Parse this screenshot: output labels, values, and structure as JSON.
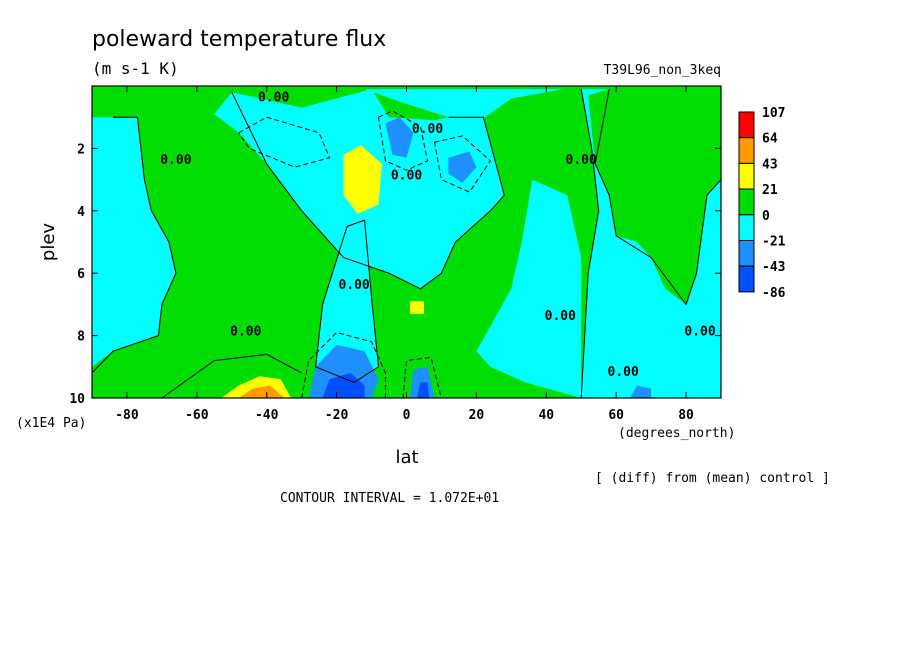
{
  "chart_data": {
    "type": "heatmap",
    "title": "poleward temperature flux",
    "subtitle": "(m s-1 K)",
    "run_label": "T39L96_non_3keq",
    "xlabel": "lat",
    "ylabel": "plev",
    "x_units": "(degrees_north)",
    "y_units": "(x1E4 Pa)",
    "xlim": [
      -90,
      90
    ],
    "ylim": [
      10,
      0
    ],
    "x_ticks": [
      "-80",
      "-60",
      "-40",
      "-20",
      "0",
      "20",
      "40",
      "60",
      "80"
    ],
    "x_tick_values": [
      -80,
      -60,
      -40,
      -20,
      0,
      20,
      40,
      60,
      80
    ],
    "y_ticks": [
      "2",
      "4",
      "6",
      "8",
      "10"
    ],
    "y_tick_values": [
      2,
      4,
      6,
      8,
      10
    ],
    "note": "[ (diff) from (mean) control ]",
    "contour_interval": "CONTOUR INTERVAL = 1.072E+01",
    "contour_label": "0.00",
    "colorbar": {
      "labels": [
        "107",
        "64",
        "43",
        "21",
        "0",
        "-21",
        "-43",
        "-86"
      ],
      "colors": [
        "#ff0000",
        "#ff9900",
        "#ffff00",
        "#00dd00",
        "#00ffff",
        "#1e90ff",
        "#0050ff"
      ]
    },
    "regions": [
      {
        "level": "positive",
        "color": "#00dd00",
        "points": [
          [
            -90,
            0.1
          ],
          [
            -30,
            0.1
          ],
          [
            -30,
            10
          ],
          [
            -90,
            10
          ]
        ]
      },
      {
        "level": "negative",
        "color": "#00ffff",
        "points": [
          [
            -84,
            1
          ],
          [
            -77,
            1
          ],
          [
            -75,
            3
          ],
          [
            -73,
            4
          ],
          [
            -68,
            5
          ],
          [
            -66,
            6
          ],
          [
            -70,
            7
          ],
          [
            -71,
            8
          ],
          [
            -84,
            8.5
          ],
          [
            -90,
            9
          ],
          [
            -90,
            1
          ]
        ]
      },
      {
        "level": "positive",
        "color": "#00dd00",
        "points": [
          [
            -30,
            0.1
          ],
          [
            -10,
            0.1
          ],
          [
            0,
            0.5
          ],
          [
            30,
            0.1
          ],
          [
            50,
            0.1
          ],
          [
            48,
            8
          ],
          [
            42,
            9.5
          ],
          [
            30,
            10
          ],
          [
            -30,
            10
          ]
        ]
      },
      {
        "level": "negative",
        "color": "#00ffff",
        "points": [
          [
            -50,
            0.2
          ],
          [
            -30,
            0.7
          ],
          [
            -10,
            0.1
          ],
          [
            -5,
            1
          ],
          [
            8,
            1.1
          ],
          [
            12,
            1
          ],
          [
            22,
            1
          ],
          [
            28,
            3.5
          ],
          [
            24,
            4
          ],
          [
            14,
            5
          ],
          [
            10,
            6
          ],
          [
            4,
            6.5
          ],
          [
            -5,
            6
          ],
          [
            -18,
            5.5
          ],
          [
            -30,
            4
          ],
          [
            -40,
            2.5
          ],
          [
            -48,
            1.5
          ],
          [
            -55,
            0.9
          ]
        ]
      },
      {
        "level": "negative",
        "color": "#00ffff",
        "points": [
          [
            36,
            3
          ],
          [
            46,
            3.5
          ],
          [
            50,
            5.5
          ],
          [
            50,
            8.5
          ],
          [
            50,
            10
          ],
          [
            34,
            9.5
          ],
          [
            24,
            9
          ],
          [
            20,
            8.5
          ],
          [
            30,
            6.5
          ],
          [
            33,
            5
          ]
        ]
      },
      {
        "level": "negative",
        "color": "#00ffff",
        "points": [
          [
            -17,
            4.5
          ],
          [
            -12,
            4.3
          ],
          [
            -10,
            6.8
          ],
          [
            -8,
            9
          ],
          [
            -15,
            9.5
          ],
          [
            -26,
            9
          ],
          [
            -24,
            7
          ]
        ]
      },
      {
        "level": "negative",
        "color": "#00ffff",
        "points": [
          [
            -12,
            0.1
          ],
          [
            -2,
            0.5
          ],
          [
            12,
            1
          ],
          [
            20,
            1.2
          ],
          [
            30,
            0.4
          ],
          [
            45,
            0.1
          ]
        ]
      },
      {
        "level": "negative",
        "color": "#00ffff",
        "points": [
          [
            50,
            0.1
          ],
          [
            90,
            0.1
          ],
          [
            90,
            10
          ],
          [
            50,
            10
          ],
          [
            52,
            6
          ],
          [
            55,
            4
          ],
          [
            53,
            2
          ]
        ]
      },
      {
        "level": "positive",
        "color": "#00dd00",
        "points": [
          [
            52,
            0.3
          ],
          [
            58,
            0.1
          ],
          [
            72,
            0.1
          ],
          [
            90,
            0.1
          ],
          [
            90,
            3
          ],
          [
            86,
            3.5
          ],
          [
            83,
            6
          ],
          [
            80,
            7
          ],
          [
            74,
            6.5
          ],
          [
            70,
            5.5
          ],
          [
            66,
            5
          ],
          [
            60,
            4.8
          ],
          [
            58,
            3.5
          ],
          [
            54,
            2.5
          ]
        ]
      },
      {
        "level": "positive",
        "color": "#00dd00",
        "points": [
          [
            -38,
            10
          ],
          [
            -50,
            9.5
          ],
          [
            -58,
            9.2
          ],
          [
            -66,
            9.5
          ],
          [
            -70,
            10
          ]
        ]
      },
      {
        "level": "positive",
        "color": "#ffff00",
        "points": [
          [
            -53,
            10
          ],
          [
            -48,
            9.6
          ],
          [
            -42,
            9.3
          ],
          [
            -36,
            9.4
          ],
          [
            -33,
            10
          ]
        ]
      },
      {
        "level": "positive",
        "color": "#ff9900",
        "points": [
          [
            -48,
            10
          ],
          [
            -44,
            9.7
          ],
          [
            -39,
            9.6
          ],
          [
            -35,
            10
          ]
        ]
      },
      {
        "level": "positive",
        "color": "#ffff00",
        "points": [
          [
            -18,
            2.2
          ],
          [
            -13,
            1.9
          ],
          [
            -7,
            2.5
          ],
          [
            -8,
            3.8
          ],
          [
            -14,
            4.1
          ],
          [
            -18,
            3.5
          ]
        ]
      },
      {
        "level": "positive",
        "color": "#ffff00",
        "points": [
          [
            1,
            6.9
          ],
          [
            5,
            6.9
          ],
          [
            5,
            7.3
          ],
          [
            1,
            7.3
          ]
        ]
      },
      {
        "level": "negative",
        "color": "#1e90ff",
        "points": [
          [
            -6,
            1.2
          ],
          [
            -2,
            1.0
          ],
          [
            2,
            1.5
          ],
          [
            0,
            2.3
          ],
          [
            -4,
            2.2
          ]
        ]
      },
      {
        "level": "negative",
        "color": "#1e90ff",
        "points": [
          [
            12,
            2.3
          ],
          [
            18,
            2.1
          ],
          [
            20,
            2.6
          ],
          [
            16,
            3.1
          ],
          [
            12,
            2.8
          ]
        ]
      },
      {
        "level": "negative",
        "color": "#1e90ff",
        "points": [
          [
            -28,
            10
          ],
          [
            -26,
            9
          ],
          [
            -20,
            8.3
          ],
          [
            -12,
            8.5
          ],
          [
            -8,
            9.4
          ],
          [
            -10,
            10
          ]
        ]
      },
      {
        "level": "negative",
        "color": "#0050ff",
        "points": [
          [
            -24,
            10
          ],
          [
            -22,
            9.4
          ],
          [
            -16,
            9.2
          ],
          [
            -12,
            9.6
          ],
          [
            -12,
            10
          ]
        ]
      },
      {
        "level": "negative",
        "color": "#1e90ff",
        "points": [
          [
            1,
            10
          ],
          [
            2,
            9.1
          ],
          [
            6,
            9.0
          ],
          [
            8,
            10
          ]
        ]
      },
      {
        "level": "negative",
        "color": "#0050ff",
        "points": [
          [
            3,
            10
          ],
          [
            4,
            9.5
          ],
          [
            6,
            9.5
          ],
          [
            6.5,
            10
          ]
        ]
      },
      {
        "level": "negative",
        "color": "#1e90ff",
        "points": [
          [
            64,
            10
          ],
          [
            66,
            9.6
          ],
          [
            70,
            9.7
          ],
          [
            70,
            10
          ]
        ]
      }
    ],
    "contour_lines": [
      {
        "style": "solid",
        "points": [
          [
            -90,
            9.2
          ],
          [
            -84,
            8.5
          ],
          [
            -71,
            8
          ],
          [
            -70,
            7
          ],
          [
            -66,
            6
          ],
          [
            -68,
            5
          ],
          [
            -73,
            4
          ],
          [
            -75,
            3
          ],
          [
            -77,
            1
          ],
          [
            -84,
            1
          ]
        ]
      },
      {
        "style": "solid",
        "points": [
          [
            -50,
            0.2
          ],
          [
            -40,
            2.5
          ],
          [
            -30,
            4
          ],
          [
            -18,
            5.5
          ],
          [
            -5,
            6
          ],
          [
            4,
            6.5
          ],
          [
            10,
            6
          ],
          [
            14,
            5
          ],
          [
            24,
            4
          ],
          [
            28,
            3.5
          ],
          [
            22,
            1
          ],
          [
            12,
            1
          ]
        ]
      },
      {
        "style": "solid",
        "points": [
          [
            -17,
            4.5
          ],
          [
            -24,
            7
          ],
          [
            -26,
            9
          ],
          [
            -15,
            9.5
          ],
          [
            -8,
            9
          ],
          [
            -10,
            6.8
          ],
          [
            -12,
            4.3
          ],
          [
            -17,
            4.5
          ]
        ]
      },
      {
        "style": "solid",
        "points": [
          [
            50,
            0.1
          ],
          [
            53,
            2
          ],
          [
            55,
            4
          ],
          [
            52,
            6
          ],
          [
            50,
            10
          ]
        ]
      },
      {
        "style": "solid",
        "points": [
          [
            58,
            0.1
          ],
          [
            54,
            2.5
          ],
          [
            58,
            3.5
          ],
          [
            60,
            4.8
          ],
          [
            70,
            5.5
          ],
          [
            80,
            7
          ],
          [
            83,
            6
          ],
          [
            86,
            3.5
          ],
          [
            90,
            3
          ]
        ]
      },
      {
        "style": "solid",
        "points": [
          [
            -30,
            9.2
          ],
          [
            -40,
            8.6
          ],
          [
            -55,
            8.8
          ],
          [
            -70,
            10
          ]
        ]
      },
      {
        "style": "dashed",
        "points": [
          [
            -48,
            1.5
          ],
          [
            -40,
            1.0
          ],
          [
            -25,
            1.5
          ],
          [
            -22,
            2.3
          ],
          [
            -32,
            2.6
          ],
          [
            -45,
            2.0
          ],
          [
            -48,
            1.5
          ]
        ]
      },
      {
        "style": "dashed",
        "points": [
          [
            -8,
            1.0
          ],
          [
            -4,
            0.8
          ],
          [
            4,
            1.3
          ],
          [
            6,
            2.4
          ],
          [
            0,
            2.7
          ],
          [
            -6,
            2.4
          ],
          [
            -8,
            1.0
          ]
        ]
      },
      {
        "style": "dashed",
        "points": [
          [
            8,
            1.8
          ],
          [
            16,
            1.6
          ],
          [
            24,
            2.4
          ],
          [
            18,
            3.4
          ],
          [
            10,
            3.0
          ],
          [
            8,
            1.8
          ]
        ]
      },
      {
        "style": "dashed",
        "points": [
          [
            -30,
            10
          ],
          [
            -28,
            8.8
          ],
          [
            -20,
            7.9
          ],
          [
            -10,
            8.2
          ],
          [
            -6,
            9.2
          ],
          [
            -6,
            10
          ]
        ]
      },
      {
        "style": "dashed",
        "points": [
          [
            -1,
            10
          ],
          [
            0,
            8.8
          ],
          [
            7,
            8.7
          ],
          [
            10,
            10
          ]
        ]
      }
    ],
    "contour_label_positions": [
      [
        -66,
        2.5
      ],
      [
        -46,
        8
      ],
      [
        -15,
        6.5
      ],
      [
        6,
        1.5
      ],
      [
        0,
        3
      ],
      [
        44,
        7.5
      ],
      [
        50,
        2.5
      ],
      [
        62,
        9.3
      ],
      [
        84,
        8
      ],
      [
        -38,
        0.5
      ]
    ]
  }
}
